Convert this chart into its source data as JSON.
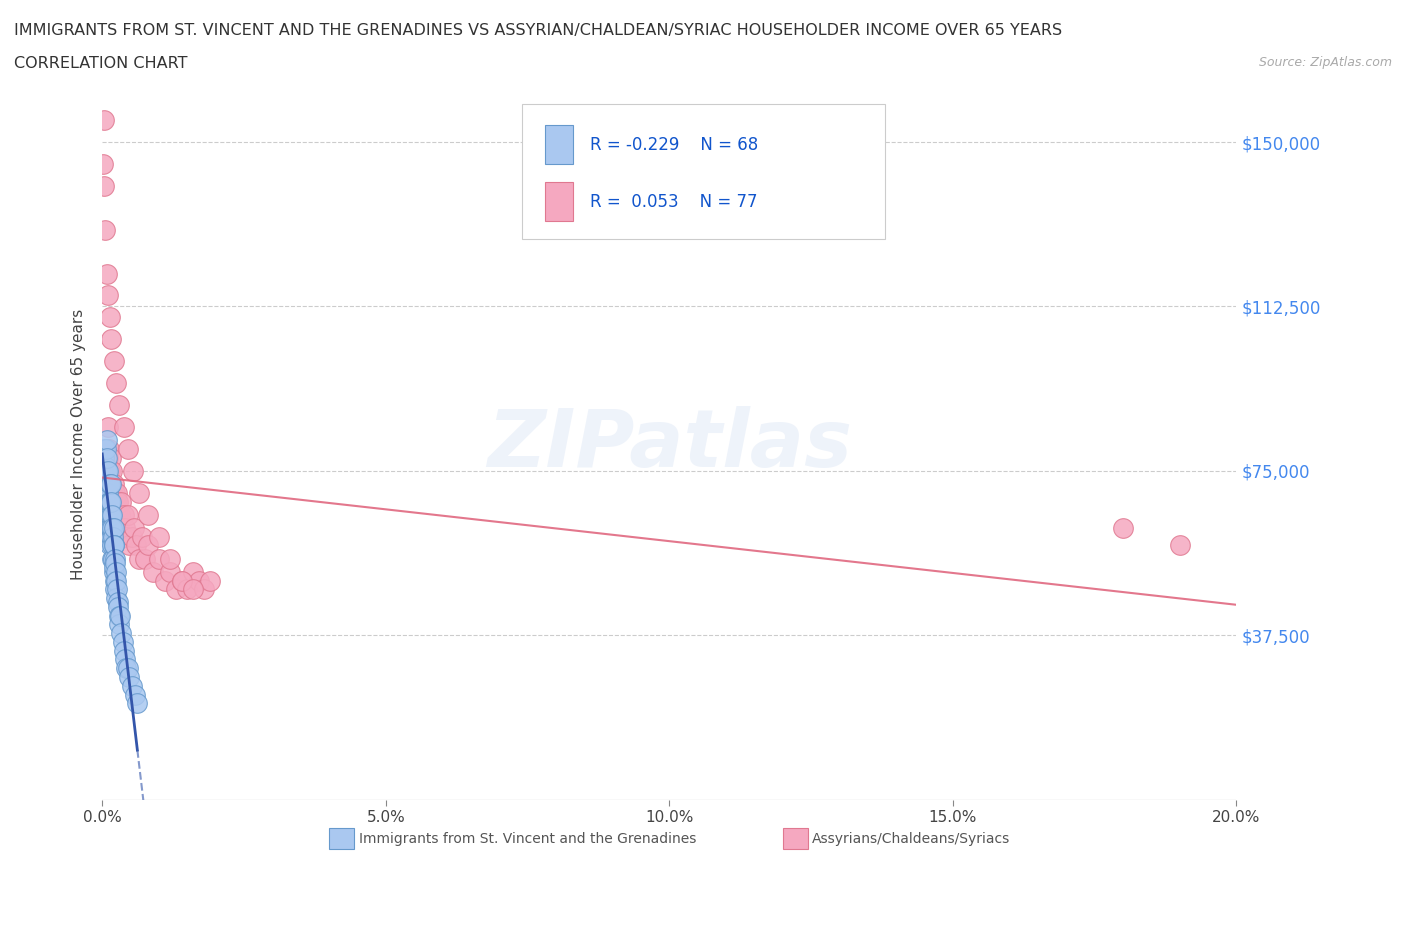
{
  "title_line1": "IMMIGRANTS FROM ST. VINCENT AND THE GRENADINES VS ASSYRIAN/CHALDEAN/SYRIAC HOUSEHOLDER INCOME OVER 65 YEARS",
  "title_line2": "CORRELATION CHART",
  "source_text": "Source: ZipAtlas.com",
  "ylabel": "Householder Income Over 65 years",
  "xlim": [
    0.0,
    0.2
  ],
  "ylim": [
    0,
    162000
  ],
  "ytick_vals": [
    37500,
    75000,
    112500,
    150000
  ],
  "ytick_labels": [
    "$37,500",
    "$75,000",
    "$112,500",
    "$150,000"
  ],
  "xtick_vals": [
    0.0,
    0.05,
    0.1,
    0.15,
    0.2
  ],
  "xtick_labels": [
    "0.0%",
    "5.0%",
    "10.0%",
    "15.0%",
    "20.0%"
  ],
  "grid_color": "#cccccc",
  "background_color": "#ffffff",
  "watermark": "ZIPatlas",
  "legend_r1": "R = -0.229",
  "legend_n1": "N = 68",
  "legend_r2": "R =  0.053",
  "legend_n2": "N = 77",
  "series1_color": "#aac8f0",
  "series1_edge": "#6699cc",
  "series2_color": "#f5a8c0",
  "series2_edge": "#e07890",
  "trend1_color": "#3355aa",
  "trend2_color": "#e06880",
  "label1": "Immigrants from St. Vincent and the Grenadines",
  "label2": "Assyrians/Chaldeans/Syriacs",
  "blue_x": [
    0.0002,
    0.0003,
    0.0004,
    0.0005,
    0.0005,
    0.0006,
    0.0006,
    0.0007,
    0.0007,
    0.0007,
    0.0008,
    0.0008,
    0.0008,
    0.0009,
    0.0009,
    0.0009,
    0.001,
    0.001,
    0.001,
    0.0011,
    0.0011,
    0.0011,
    0.0012,
    0.0012,
    0.0013,
    0.0013,
    0.0013,
    0.0014,
    0.0014,
    0.0015,
    0.0015,
    0.0015,
    0.0016,
    0.0016,
    0.0017,
    0.0017,
    0.0018,
    0.0018,
    0.0019,
    0.0019,
    0.002,
    0.002,
    0.002,
    0.0021,
    0.0021,
    0.0022,
    0.0022,
    0.0023,
    0.0023,
    0.0024,
    0.0025,
    0.0025,
    0.0026,
    0.0027,
    0.0028,
    0.0029,
    0.003,
    0.0032,
    0.0034,
    0.0036,
    0.0038,
    0.004,
    0.0042,
    0.0045,
    0.0048,
    0.0052,
    0.0057,
    0.0062
  ],
  "blue_y": [
    75000,
    78000,
    80000,
    72000,
    65000,
    68000,
    76000,
    80000,
    72000,
    60000,
    75000,
    68000,
    82000,
    70000,
    65000,
    78000,
    72000,
    68000,
    60000,
    75000,
    70000,
    65000,
    68000,
    62000,
    72000,
    65000,
    58000,
    68000,
    62000,
    72000,
    65000,
    60000,
    68000,
    62000,
    65000,
    58000,
    62000,
    55000,
    60000,
    55000,
    62000,
    58000,
    52000,
    58000,
    53000,
    55000,
    50000,
    54000,
    48000,
    52000,
    50000,
    46000,
    48000,
    45000,
    44000,
    42000,
    40000,
    42000,
    38000,
    36000,
    34000,
    32000,
    30000,
    30000,
    28000,
    26000,
    24000,
    22000
  ],
  "pink_x": [
    0.0003,
    0.0005,
    0.0006,
    0.0007,
    0.0008,
    0.0009,
    0.001,
    0.0011,
    0.0011,
    0.0012,
    0.0012,
    0.0013,
    0.0014,
    0.0015,
    0.0015,
    0.0016,
    0.0017,
    0.0018,
    0.0019,
    0.002,
    0.0021,
    0.0022,
    0.0023,
    0.0024,
    0.0025,
    0.0026,
    0.0027,
    0.0028,
    0.003,
    0.0032,
    0.0034,
    0.0036,
    0.0038,
    0.004,
    0.0042,
    0.0045,
    0.0048,
    0.0052,
    0.0056,
    0.006,
    0.0065,
    0.007,
    0.0075,
    0.008,
    0.009,
    0.01,
    0.011,
    0.012,
    0.013,
    0.014,
    0.015,
    0.016,
    0.017,
    0.018,
    0.019,
    0.0005,
    0.0008,
    0.001,
    0.0013,
    0.0016,
    0.002,
    0.0025,
    0.003,
    0.0038,
    0.0045,
    0.0055,
    0.0065,
    0.008,
    0.01,
    0.012,
    0.014,
    0.016,
    0.0002,
    0.0003,
    0.0004,
    0.18,
    0.19
  ],
  "pink_y": [
    72000,
    68000,
    75000,
    70000,
    80000,
    72000,
    78000,
    68000,
    85000,
    75000,
    80000,
    70000,
    75000,
    68000,
    78000,
    72000,
    68000,
    75000,
    70000,
    65000,
    72000,
    68000,
    70000,
    65000,
    68000,
    70000,
    65000,
    68000,
    62000,
    65000,
    68000,
    60000,
    65000,
    62000,
    60000,
    65000,
    58000,
    60000,
    62000,
    58000,
    55000,
    60000,
    55000,
    58000,
    52000,
    55000,
    50000,
    52000,
    48000,
    50000,
    48000,
    52000,
    50000,
    48000,
    50000,
    130000,
    120000,
    115000,
    110000,
    105000,
    100000,
    95000,
    90000,
    85000,
    80000,
    75000,
    70000,
    65000,
    60000,
    55000,
    50000,
    48000,
    145000,
    155000,
    140000,
    62000,
    58000
  ]
}
